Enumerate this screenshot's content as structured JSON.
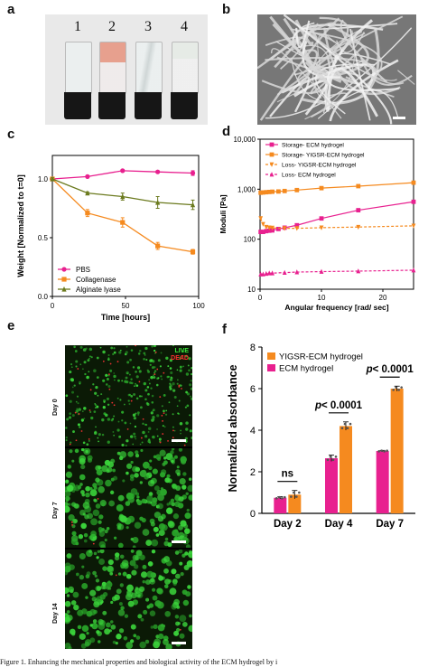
{
  "panels": {
    "a": "a",
    "b": "b",
    "c": "c",
    "d": "d",
    "e": "e",
    "f": "f"
  },
  "vial_numbers": [
    "1",
    "2",
    "3",
    "4"
  ],
  "micro_labels": {
    "live": "LIVE",
    "dead": "DEAD",
    "days": [
      "Day 0",
      "Day 7",
      "Day 14"
    ]
  },
  "caption": "Figure 1. Enhancing the mechanical properties and biological activity of the ECM hydrogel by i",
  "chart_data": [
    {
      "type": "line",
      "panel": "c",
      "xlabel": "Time [hours]",
      "ylabel": "Weight [Normalized to t=0]",
      "xlim": [
        0,
        100
      ],
      "ylim": [
        0,
        1.2
      ],
      "x_ticks": [
        "0",
        "50",
        "100"
      ],
      "y_ticks": [
        "0.0",
        "0.5",
        "1.0"
      ],
      "legend_position": "bottom-left",
      "series": [
        {
          "name": "PBS",
          "color": "#e8208f",
          "marker": "circle",
          "x": [
            0,
            24,
            48,
            72,
            96
          ],
          "y": [
            1.0,
            1.02,
            1.07,
            1.06,
            1.05
          ],
          "err": [
            0.01,
            0.01,
            0.01,
            0.01,
            0.02
          ]
        },
        {
          "name": "Collagenase",
          "color": "#f58a1f",
          "marker": "square",
          "x": [
            0,
            24,
            48,
            72,
            96
          ],
          "y": [
            1.0,
            0.71,
            0.63,
            0.43,
            0.38
          ],
          "err": [
            0.01,
            0.03,
            0.04,
            0.03,
            0.02
          ]
        },
        {
          "name": "Alginate lyase",
          "color": "#6b7a1e",
          "marker": "triangle",
          "x": [
            0,
            24,
            48,
            72,
            96
          ],
          "y": [
            1.0,
            0.88,
            0.85,
            0.8,
            0.78
          ],
          "err": [
            0.01,
            0.01,
            0.03,
            0.05,
            0.04
          ]
        }
      ]
    },
    {
      "type": "line",
      "panel": "d",
      "xlabel": "Angular frequency [rad/ sec]",
      "ylabel": "Moduli [Pa]",
      "xlim": [
        0,
        25
      ],
      "ylim": [
        10,
        10000
      ],
      "yscale": "log",
      "x_ticks": [
        "0",
        "10",
        "20"
      ],
      "y_ticks": [
        "10",
        "100",
        "1,000",
        "10,000"
      ],
      "legend_position": "top-left",
      "series": [
        {
          "name": "Storage- ECM hydrogel",
          "color": "#e8208f",
          "marker": "square",
          "dashed": false,
          "x": [
            0.1,
            0.5,
            1,
            1.5,
            2,
            3,
            4,
            6,
            10,
            16,
            25
          ],
          "y": [
            140,
            140,
            145,
            148,
            150,
            160,
            170,
            190,
            260,
            380,
            560
          ]
        },
        {
          "name": "Storage- YIGSR-ECM hydrogel",
          "color": "#f58a1f",
          "marker": "square",
          "dashed": false,
          "x": [
            0.1,
            0.5,
            1,
            1.5,
            2,
            3,
            4,
            6,
            10,
            16,
            25
          ],
          "y": [
            850,
            860,
            870,
            880,
            890,
            900,
            920,
            960,
            1050,
            1150,
            1350
          ]
        },
        {
          "name": "Loss- YIGSR-ECM hydrogel",
          "color": "#f58a1f",
          "marker": "triangle-down",
          "dashed": true,
          "x": [
            0.1,
            0.5,
            1,
            1.5,
            2,
            4,
            6,
            10,
            16,
            25
          ],
          "y": [
            260,
            200,
            175,
            170,
            168,
            165,
            165,
            170,
            175,
            185
          ]
        },
        {
          "name": "Loss- ECM hydrogel",
          "color": "#e8208f",
          "marker": "triangle",
          "dashed": true,
          "x": [
            0.1,
            0.5,
            1,
            1.5,
            2,
            4,
            6,
            10,
            16,
            25
          ],
          "y": [
            20,
            20,
            20.5,
            21,
            21,
            21.5,
            22,
            22.5,
            23,
            24
          ]
        }
      ]
    },
    {
      "type": "bar",
      "panel": "f",
      "ylabel": "Normalized absorbance",
      "ylim": [
        0,
        8
      ],
      "y_ticks": [
        "0",
        "2",
        "4",
        "6",
        "8"
      ],
      "categories": [
        "Day 2",
        "Day 4",
        "Day 7"
      ],
      "legend_position": "top-left",
      "series": [
        {
          "name": "ECM hydrogel",
          "color": "#e8208f",
          "values": [
            0.75,
            2.65,
            3.0
          ],
          "err": [
            0.05,
            0.15,
            0.03
          ]
        },
        {
          "name": "YIGSR-ECM hydrogel",
          "color": "#f58a1f",
          "values": [
            0.9,
            4.2,
            6.0
          ],
          "err": [
            0.2,
            0.2,
            0.12
          ]
        }
      ],
      "annotations": [
        "ns",
        "p< 0.0001",
        "p< 0.0001"
      ]
    }
  ]
}
